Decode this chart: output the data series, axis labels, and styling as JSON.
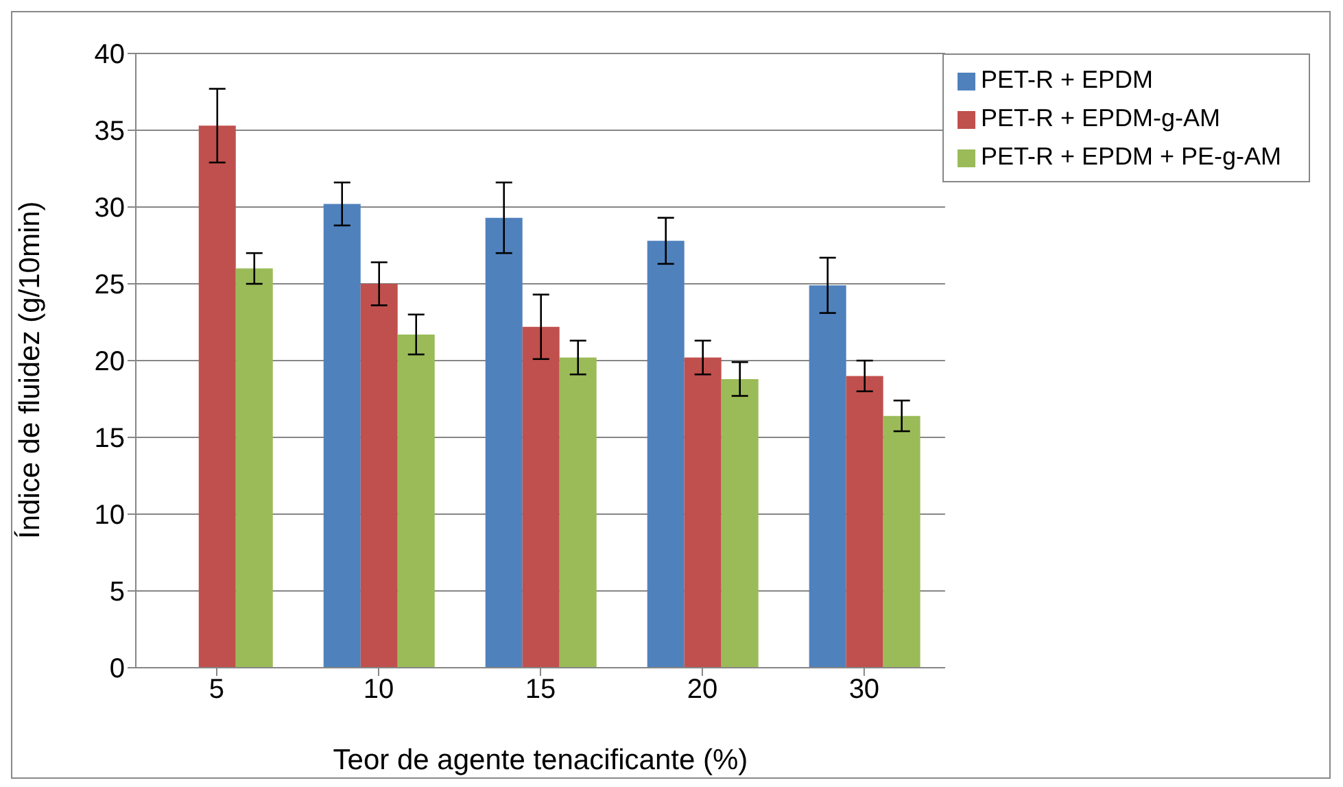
{
  "chart_data": {
    "type": "bar",
    "xlabel": "Teor de agente tenacificante (%)",
    "ylabel": "Índice de fluidez (g/10min)",
    "categories": [
      "5",
      "10",
      "15",
      "20",
      "30"
    ],
    "series": [
      {
        "name": "PET-R + EPDM",
        "color": "#4f81bd",
        "values": [
          0,
          30.2,
          29.3,
          27.8,
          24.9
        ],
        "errors": [
          null,
          1.4,
          2.3,
          1.5,
          1.8
        ]
      },
      {
        "name": "PET-R + EPDM-g-AM",
        "color": "#c0504d",
        "values": [
          35.3,
          25.0,
          22.2,
          20.2,
          19.0
        ],
        "errors": [
          2.4,
          1.4,
          2.1,
          1.1,
          1.0
        ]
      },
      {
        "name": "PET-R + EPDM + PE-g-AM",
        "color": "#9bbb59",
        "values": [
          26.0,
          21.7,
          20.2,
          18.8,
          16.4
        ],
        "errors": [
          1.0,
          1.3,
          1.1,
          1.1,
          1.0
        ]
      }
    ],
    "ylim": [
      0,
      40
    ],
    "yticks": [
      0,
      5,
      10,
      15,
      20,
      25,
      30,
      35,
      40
    ],
    "grid": "y",
    "legend": "top right"
  }
}
